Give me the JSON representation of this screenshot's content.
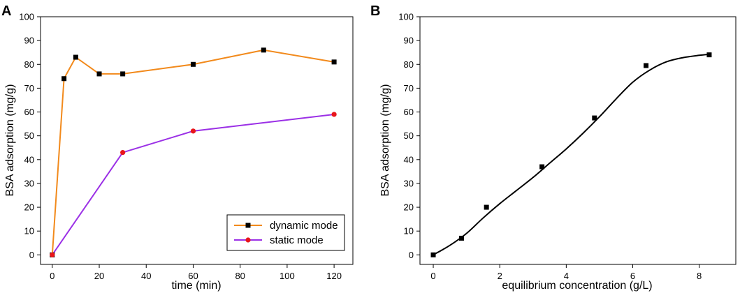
{
  "chart_data": [
    {
      "panel": "A",
      "type": "line",
      "xlabel": "time (min)",
      "ylabel": "BSA adsorption (mg/g)",
      "xlim": [
        -5,
        128
      ],
      "ylim": [
        -4,
        100
      ],
      "xticks": [
        0,
        20,
        40,
        60,
        80,
        100,
        120
      ],
      "yticks": [
        0,
        10,
        20,
        30,
        40,
        50,
        60,
        70,
        80,
        90,
        100
      ],
      "legend_position": "bottom-right",
      "series": [
        {
          "name": "dynamic mode",
          "color": "#f28a1c",
          "marker": "square",
          "marker_color": "#000000",
          "x": [
            0,
            5,
            10,
            20,
            30,
            60,
            90,
            120
          ],
          "y": [
            0,
            74,
            83,
            76,
            76,
            80,
            86,
            81
          ]
        },
        {
          "name": "static mode",
          "color": "#9b30e6",
          "marker": "circle",
          "marker_color": "#e8151b",
          "x": [
            0,
            30,
            60,
            120
          ],
          "y": [
            0,
            43,
            52,
            59
          ]
        }
      ]
    },
    {
      "panel": "B",
      "type": "scatter",
      "xlabel": "equilibrium concentration (g/L)",
      "ylabel": "BSA adsorption (mg/g)",
      "xlim": [
        -0.4,
        9.1
      ],
      "ylim": [
        -4,
        100
      ],
      "xticks": [
        0,
        2,
        4,
        6,
        8
      ],
      "yticks": [
        0,
        10,
        20,
        30,
        40,
        50,
        60,
        70,
        80,
        90,
        100
      ],
      "series": [
        {
          "name": "data",
          "marker": "square",
          "marker_color": "#000000",
          "x": [
            0,
            0.85,
            1.6,
            3.27,
            4.85,
            6.4,
            8.3
          ],
          "y": [
            0,
            7,
            20,
            37,
            57.5,
            79.5,
            84
          ]
        }
      ],
      "fit": {
        "name": "fit",
        "color": "#000000",
        "x": [
          0,
          0.5,
          1,
          1.5,
          2,
          2.5,
          3,
          3.5,
          4,
          4.5,
          5,
          5.5,
          6,
          6.5,
          7,
          7.5,
          8,
          8.3
        ],
        "y": [
          0,
          4,
          9,
          15.5,
          21.5,
          27,
          32.5,
          38.5,
          44.5,
          51,
          58,
          65.5,
          72.5,
          77.5,
          81,
          82.8,
          83.8,
          84.2
        ]
      }
    }
  ]
}
